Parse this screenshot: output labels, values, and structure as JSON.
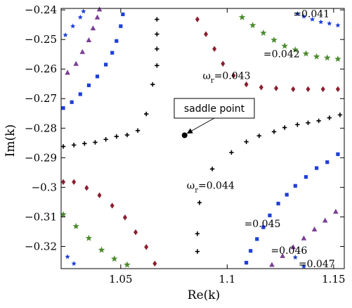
{
  "chart_data": {
    "type": "scatter",
    "title": "",
    "xlabel": "Re(k)",
    "ylabel": "Im(k)",
    "xlim": [
      1.022,
      1.155
    ],
    "ylim": [
      -0.3275,
      -0.2395
    ],
    "xticks": [
      1.05,
      1.1,
      1.15
    ],
    "xtick_labels": [
      "1.05",
      "1.1",
      "1.15"
    ],
    "yticks": [
      -0.24,
      -0.25,
      -0.26,
      -0.27,
      -0.28,
      -0.29,
      -0.3,
      -0.31,
      -0.32
    ],
    "ytick_labels": [
      "-0.24",
      "-0.25",
      "-0.26",
      "-0.27",
      "-0.28",
      "-0.29",
      "-0.3",
      "-0.31",
      "-0.32"
    ],
    "grid": false,
    "series": [
      {
        "marker": "star-small",
        "color": "#1f3fd6",
        "points": [
          [
            1.024,
            -0.2485
          ],
          [
            1.0275,
            -0.2455
          ],
          [
            1.031,
            -0.2425
          ],
          [
            1.0325,
            -0.2405
          ],
          [
            1.133,
            -0.2413
          ],
          [
            1.136,
            -0.2422
          ],
          [
            1.14,
            -0.2432
          ],
          [
            1.144,
            -0.2441
          ],
          [
            1.148,
            -0.2446
          ],
          [
            1.152,
            -0.2452
          ],
          [
            1.025,
            -0.3235
          ],
          [
            1.028,
            -0.3258
          ],
          [
            1.132,
            -0.3237
          ],
          [
            1.136,
            -0.3268
          ]
        ]
      },
      {
        "marker": "square",
        "color": "#1f3fd6",
        "points": [
          [
            1.023,
            -0.2732
          ],
          [
            1.027,
            -0.2712
          ],
          [
            1.031,
            -0.2685
          ],
          [
            1.035,
            -0.2655
          ],
          [
            1.039,
            -0.2625
          ],
          [
            1.043,
            -0.2585
          ],
          [
            1.046,
            -0.2545
          ],
          [
            1.048,
            -0.2505
          ],
          [
            1.05,
            -0.2455
          ],
          [
            1.051,
            -0.2415
          ],
          [
            1.109,
            -0.3255
          ],
          [
            1.111,
            -0.3215
          ],
          [
            1.114,
            -0.3175
          ],
          [
            1.117,
            -0.3135
          ],
          [
            1.12,
            -0.3095
          ],
          [
            1.124,
            -0.3055
          ],
          [
            1.128,
            -0.3025
          ],
          [
            1.132,
            -0.2995
          ],
          [
            1.137,
            -0.2965
          ],
          [
            1.142,
            -0.2935
          ],
          [
            1.147,
            -0.2915
          ],
          [
            1.152,
            -0.2888
          ]
        ]
      },
      {
        "marker": "triangle",
        "color": "#7a3f94",
        "points": [
          [
            1.025,
            -0.2612
          ],
          [
            1.029,
            -0.2582
          ],
          [
            1.032,
            -0.2542
          ],
          [
            1.035,
            -0.2502
          ],
          [
            1.037,
            -0.2462
          ],
          [
            1.039,
            -0.2425
          ],
          [
            1.04,
            -0.2398
          ],
          [
            1.121,
            -0.3262
          ],
          [
            1.126,
            -0.3232
          ],
          [
            1.131,
            -0.3202
          ],
          [
            1.136,
            -0.3172
          ],
          [
            1.141,
            -0.3142
          ],
          [
            1.146,
            -0.3112
          ],
          [
            1.151,
            -0.3082
          ]
        ]
      },
      {
        "marker": "star",
        "color": "#4c8a2f",
        "points": [
          [
            1.107,
            -0.2425
          ],
          [
            1.112,
            -0.2452
          ],
          [
            1.117,
            -0.2478
          ],
          [
            1.122,
            -0.2502
          ],
          [
            1.127,
            -0.2522
          ],
          [
            1.132,
            -0.2535
          ],
          [
            1.137,
            -0.2548
          ],
          [
            1.142,
            -0.2558
          ],
          [
            1.147,
            -0.2562
          ],
          [
            1.152,
            -0.2566
          ],
          [
            1.023,
            -0.3092
          ],
          [
            1.029,
            -0.3132
          ],
          [
            1.035,
            -0.3172
          ],
          [
            1.041,
            -0.3212
          ],
          [
            1.047,
            -0.3242
          ],
          [
            1.053,
            -0.3262
          ]
        ]
      },
      {
        "marker": "diamond",
        "color": "#8c1f2f",
        "points": [
          [
            1.086,
            -0.2432
          ],
          [
            1.09,
            -0.2482
          ],
          [
            1.094,
            -0.2532
          ],
          [
            1.098,
            -0.2582
          ],
          [
            1.103,
            -0.2622
          ],
          [
            1.109,
            -0.2652
          ],
          [
            1.116,
            -0.2662
          ],
          [
            1.123,
            -0.2665
          ],
          [
            1.131,
            -0.2668
          ],
          [
            1.138,
            -0.2668
          ],
          [
            1.145,
            -0.2668
          ],
          [
            1.152,
            -0.2668
          ],
          [
            1.023,
            -0.2982
          ],
          [
            1.028,
            -0.2982
          ],
          [
            1.034,
            -0.3002
          ],
          [
            1.04,
            -0.3027
          ],
          [
            1.046,
            -0.3062
          ],
          [
            1.052,
            -0.3102
          ],
          [
            1.057,
            -0.3152
          ],
          [
            1.062,
            -0.3202
          ],
          [
            1.066,
            -0.3258
          ]
        ]
      },
      {
        "marker": "plus",
        "color": "#000000",
        "points": [
          [
            1.067,
            -0.2432
          ],
          [
            1.067,
            -0.2482
          ],
          [
            1.067,
            -0.2532
          ],
          [
            1.067,
            -0.2588
          ],
          [
            1.065,
            -0.2652
          ],
          [
            1.062,
            -0.2752
          ],
          [
            1.058,
            -0.2808
          ],
          [
            1.053,
            -0.2823
          ],
          [
            1.048,
            -0.2828
          ],
          [
            1.043,
            -0.2838
          ],
          [
            1.038,
            -0.2848
          ],
          [
            1.033,
            -0.2852
          ],
          [
            1.028,
            -0.2857
          ],
          [
            1.023,
            -0.2862
          ],
          [
            1.086,
            -0.3217
          ],
          [
            1.086,
            -0.3157
          ],
          [
            1.087,
            -0.3052
          ],
          [
            1.093,
            -0.2938
          ],
          [
            1.102,
            -0.2882
          ],
          [
            1.109,
            -0.2846
          ],
          [
            1.115,
            -0.2826
          ],
          [
            1.122,
            -0.2812
          ],
          [
            1.127,
            -0.2798
          ],
          [
            1.133,
            -0.2788
          ],
          [
            1.138,
            -0.2782
          ],
          [
            1.143,
            -0.2775
          ],
          [
            1.148,
            -0.2765
          ],
          [
            1.153,
            -0.2755
          ]
        ]
      }
    ],
    "saddle_point": {
      "x": 1.08,
      "y": -0.2824,
      "label": "saddle point"
    },
    "annotations": [
      {
        "x": 1.131,
        "y": -0.2425,
        "text": "=0.041"
      },
      {
        "x": 1.117,
        "y": -0.256,
        "text": "=0.042"
      },
      {
        "x": 1.0885,
        "y": -0.2634,
        "text": "ω",
        "sub": "r",
        "suffix": "=0.043"
      },
      {
        "x": 1.081,
        "y": -0.3005,
        "text": "ω",
        "sub": "r",
        "suffix": "=0.044"
      },
      {
        "x": 1.108,
        "y": -0.3135,
        "text": "=0.045"
      },
      {
        "x": 1.1205,
        "y": -0.3225,
        "text": "=0.046"
      },
      {
        "x": 1.1335,
        "y": -0.327,
        "text": "=0.047"
      }
    ]
  }
}
